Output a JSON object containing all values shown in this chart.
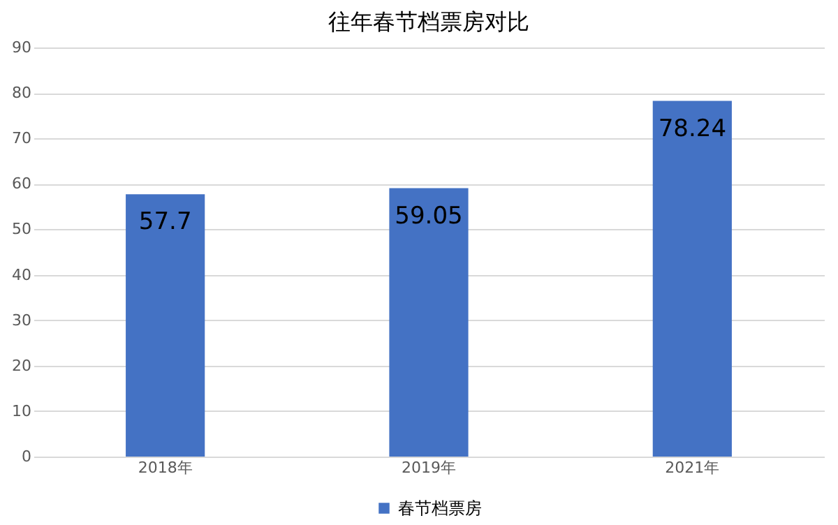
{
  "chart_data": {
    "type": "bar",
    "title": "往年春节档票房对比",
    "categories": [
      "2018年",
      "2019年",
      "2021年"
    ],
    "series": [
      {
        "name": "春节档票房",
        "color": "#4472c4",
        "values": [
          57.7,
          59.05,
          78.24
        ]
      }
    ],
    "ylim": [
      0,
      90
    ],
    "yticks": [
      0,
      10,
      20,
      30,
      40,
      50,
      60,
      70,
      80,
      90
    ],
    "grid": "y",
    "legend": "bottom",
    "data_labels": true
  }
}
